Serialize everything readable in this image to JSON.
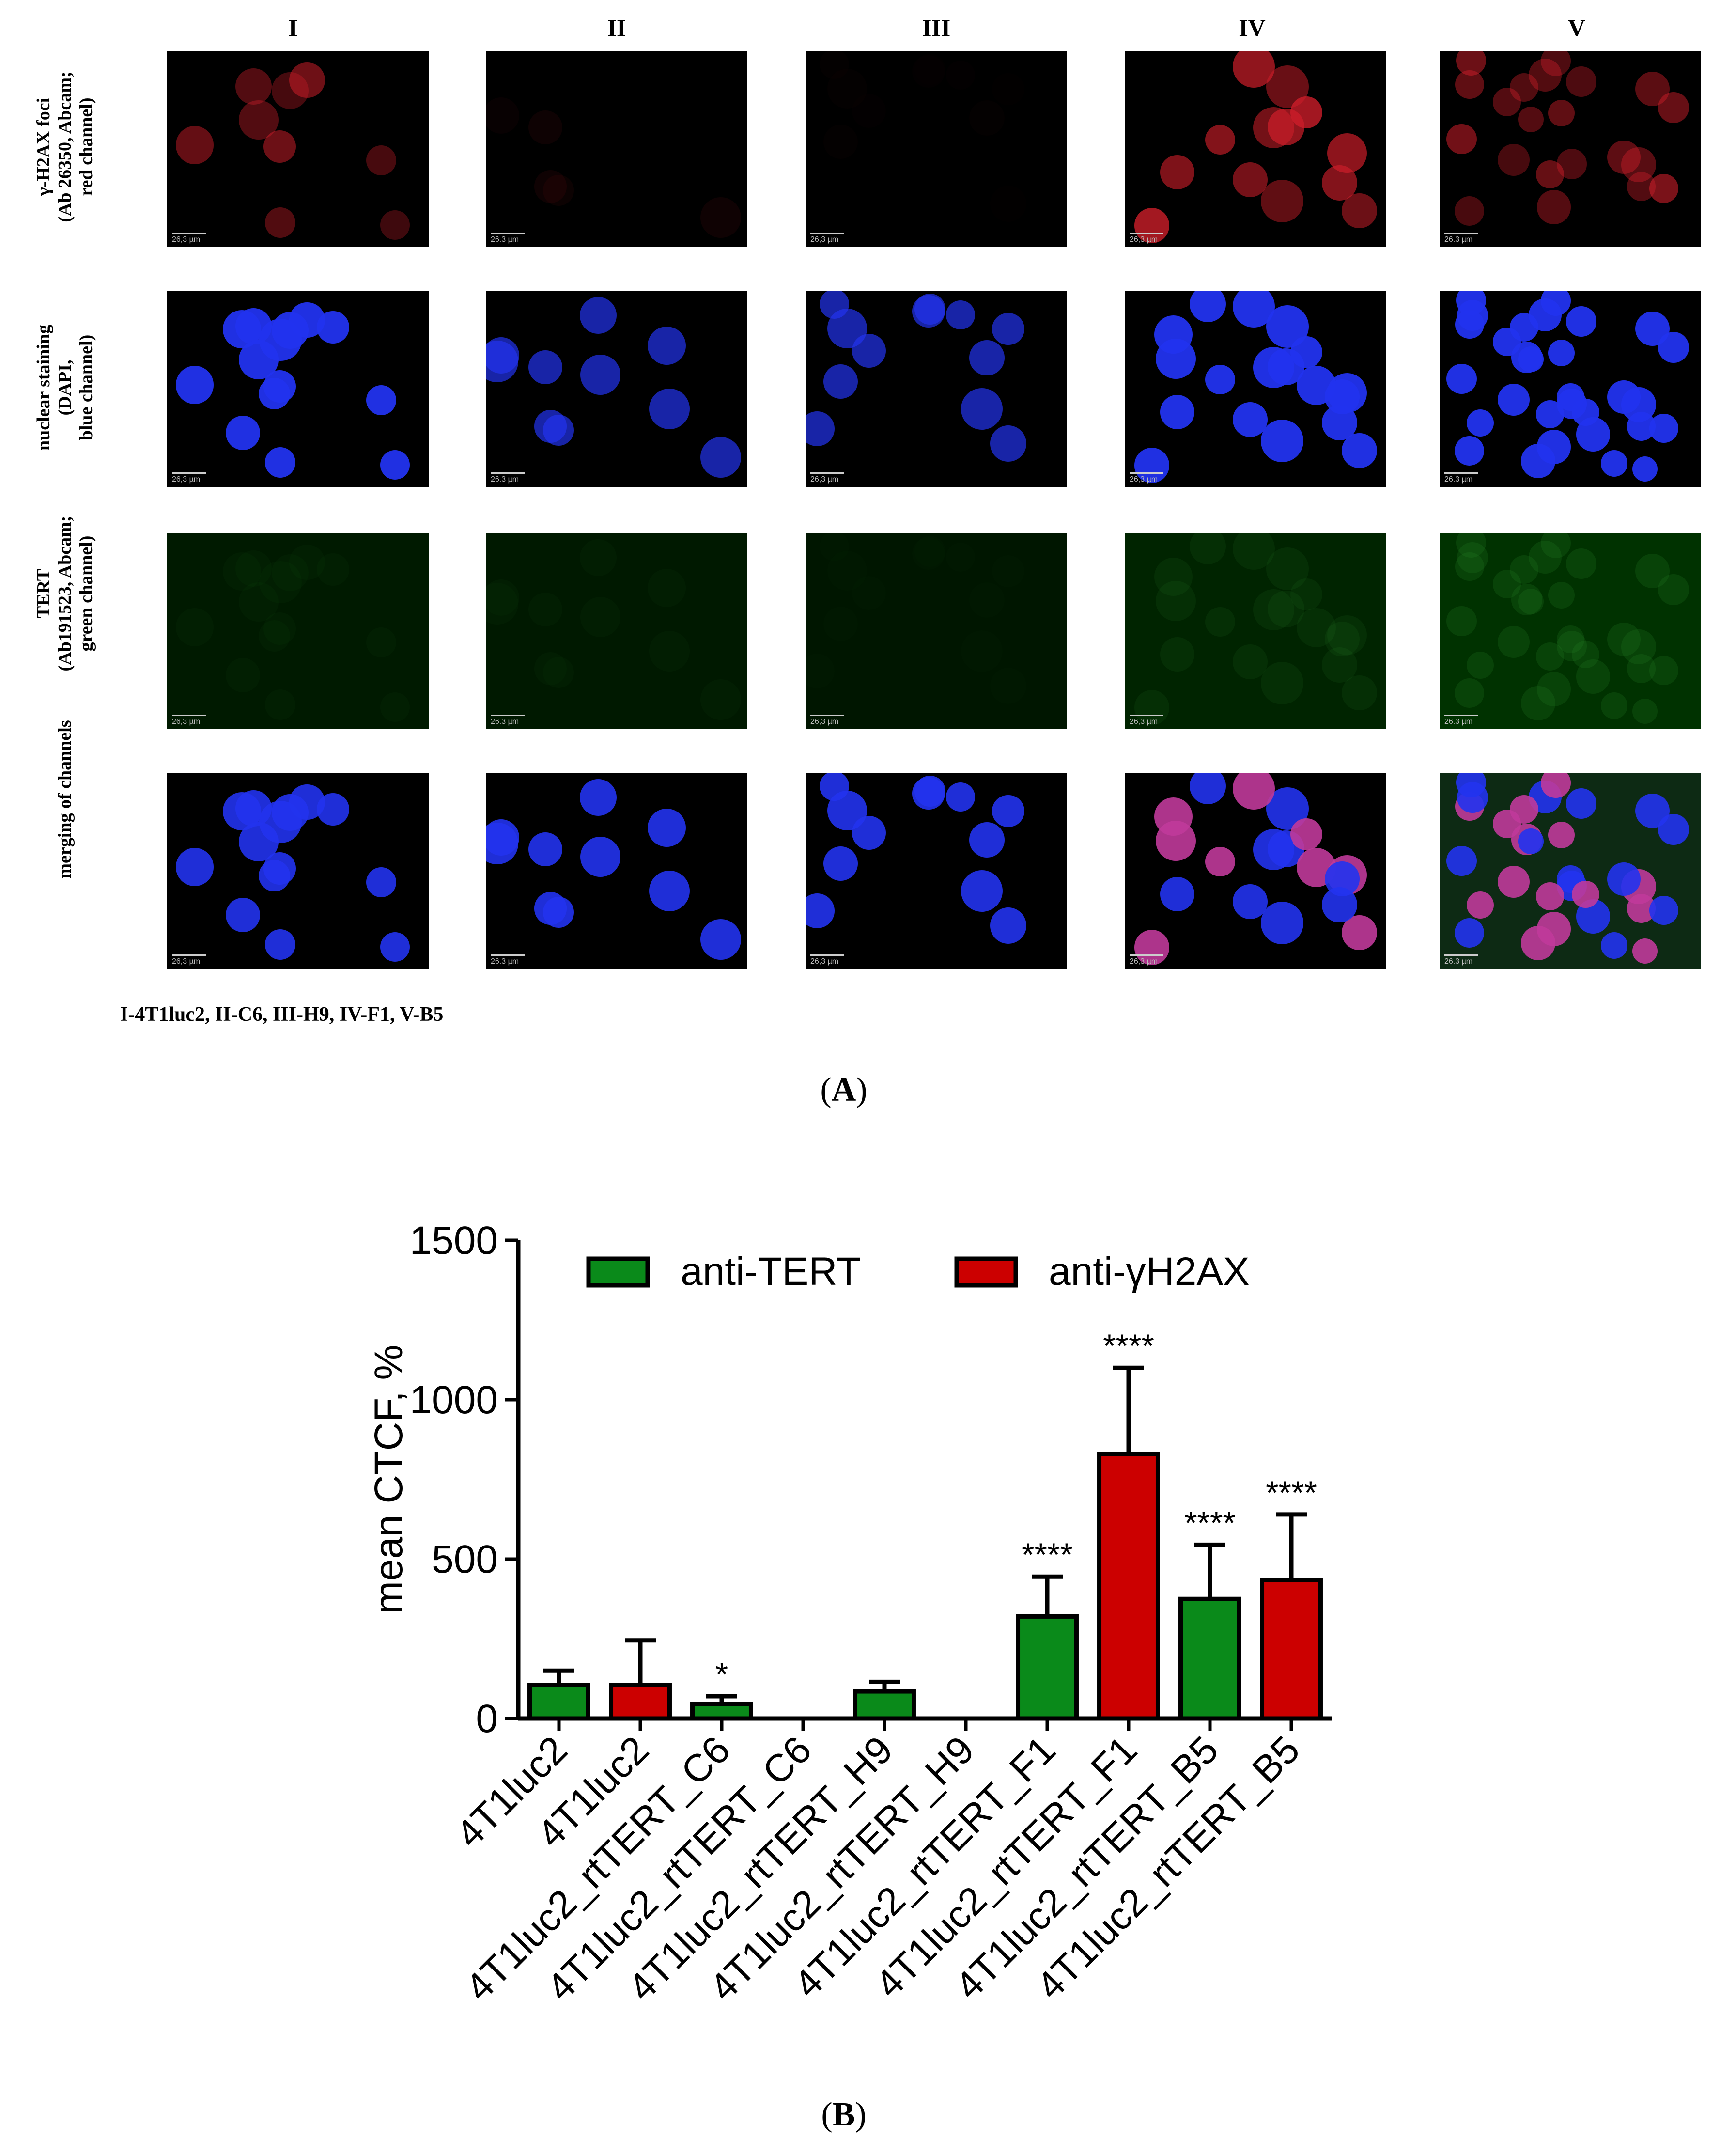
{
  "panel_a": {
    "column_headers": [
      "I",
      "II",
      "III",
      "IV",
      "V"
    ],
    "row_labels": [
      [
        "γ-H2AX foci",
        "(Ab 26350, Abcam;",
        "red channel)"
      ],
      [
        "nuclear staining",
        "(DAPI,",
        "blue channel)"
      ],
      [
        "TERT",
        "(Ab191523, Abcam;",
        "green channel)"
      ],
      [
        "merging of channels"
      ]
    ],
    "scale_bar_labels": [
      "26,3 µm",
      "26.3 µm",
      "26,3 µm",
      "26,3 µm",
      "26.3 µm"
    ],
    "legend_line": "I-4T1luc2, II-C6, III-H9, IV-F1, V-B5",
    "tag_open": "(",
    "tag_letter": "A",
    "tag_close": ")",
    "channel_colors": {
      "red": "#d01e2a",
      "blue": "#2233ee",
      "green": "#2f8f2f",
      "merge_pink": "#c03a9a"
    }
  },
  "panel_b": {
    "tag_open": "(",
    "tag_letter": "B",
    "tag_close": ")"
  },
  "chart_data": {
    "type": "bar",
    "title": "",
    "xlabel": "",
    "ylabel": "mean CTCF, %",
    "ylim": [
      0,
      1500
    ],
    "yticks": [
      0,
      500,
      1000,
      1500
    ],
    "legend_position": "top",
    "categories": [
      "4T1luc2",
      "4T1luc2",
      "4T1luc2_rtTERT_C6",
      "4T1luc2_rtTERT_C6",
      "4T1luc2_rtTERT_H9",
      "4T1luc2_rtTERT_H9",
      "4T1luc2_rtTERT_F1",
      "4T1luc2_rtTERT_F1",
      "4T1luc2_rtTERT_B5",
      "4T1luc2_rtTERT_B5"
    ],
    "series": [
      {
        "name": "anti-TERT",
        "color": "#0a8a1a"
      },
      {
        "name": "anti-γH2AX",
        "color": "#cc0000"
      }
    ],
    "bars": [
      {
        "series": 0,
        "value": 105,
        "error": 45,
        "annotation": ""
      },
      {
        "series": 1,
        "value": 105,
        "error": 140,
        "annotation": ""
      },
      {
        "series": 0,
        "value": 45,
        "error": 25,
        "annotation": "*"
      },
      {
        "series": 1,
        "value": 0,
        "error": 0,
        "annotation": ""
      },
      {
        "series": 0,
        "value": 85,
        "error": 30,
        "annotation": ""
      },
      {
        "series": 1,
        "value": 0,
        "error": 0,
        "annotation": ""
      },
      {
        "series": 0,
        "value": 320,
        "error": 125,
        "annotation": "****"
      },
      {
        "series": 1,
        "value": 830,
        "error": 270,
        "annotation": "****"
      },
      {
        "series": 0,
        "value": 375,
        "error": 170,
        "annotation": "****"
      },
      {
        "series": 1,
        "value": 435,
        "error": 205,
        "annotation": "****"
      }
    ]
  }
}
